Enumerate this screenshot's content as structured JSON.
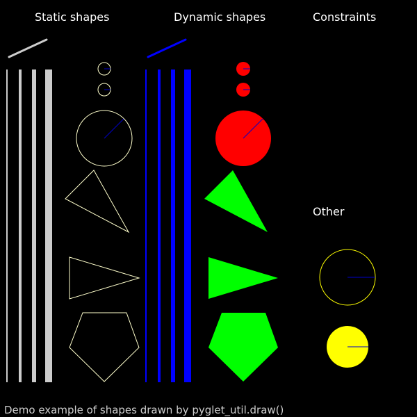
{
  "window": {
    "background": "#000000"
  },
  "headers": {
    "static": "Static shapes",
    "dynamic": "Dynamic shapes",
    "constraints": "Constraints",
    "other": "Other"
  },
  "footer": {
    "text": "Demo example of shapes drawn by pyglet_util.draw()"
  },
  "colors": {
    "static_line": "#cccccc",
    "static_outline": "#ffffcc",
    "dynamic_blue": "#0000ff",
    "dynamic_red": "#ff0000",
    "dynamic_green": "#00ff00",
    "other_outline": "#ffff00",
    "other_fill": "#ffff00",
    "radius_line": "#0000cc"
  }
}
